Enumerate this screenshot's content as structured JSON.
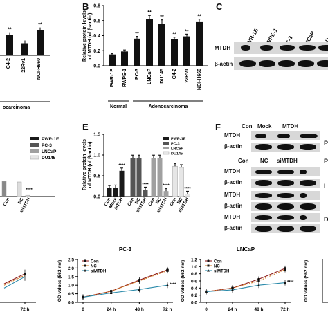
{
  "panels": {
    "b_label": "B",
    "c_label": "C",
    "e_label": "E",
    "f_label": "F"
  },
  "chart_b": {
    "ylabel": "Relative protein levels\nof MTDH (of β-actin)",
    "group_normal": "Normal",
    "group_adeno": "Adenocarcinoma"
  },
  "chart_a_partial": {
    "group_label": "ocarcinoma"
  },
  "chart_e": {
    "ylabel": "Relative protein levels\nof MTDH (of β-actin)"
  },
  "legend_d": [
    "PWR-1E",
    "PC-3",
    "LNCaP",
    "DU145"
  ],
  "legend_e": [
    "PWR-1E",
    "PC-3",
    "LNCaP",
    "DU145"
  ],
  "blot_c": {
    "lanes": [
      "PWR-1E",
      "RWPE-1",
      "PC-3",
      "LNCaP",
      "DU14"
    ],
    "rows": [
      "MTDH",
      "β-actin"
    ]
  },
  "blot_f": {
    "set1_lanes": [
      "Con",
      "Mock",
      "MTDH"
    ],
    "set2_lanes": [
      "Con",
      "NC",
      "siMTDH"
    ],
    "rows": [
      "MTDH",
      "β-actin",
      "MTDH",
      "β-actin",
      "MTDH",
      "β-actin",
      "MTDH",
      "β-actin"
    ],
    "side_letters": [
      "P",
      "P",
      "L",
      "D"
    ]
  },
  "line_pc3": {
    "title": "PC-3",
    "ylabel": "OD values (562 nm)",
    "xticks": [
      "0",
      "24 h",
      "48 h",
      "72 h"
    ],
    "legend": [
      "Con",
      "NC",
      "siMTDH"
    ]
  },
  "line_lncap": {
    "title": "LNCaP",
    "ylabel": "OD values (562 nm)",
    "xticks": [
      "0",
      "24 h",
      "48 h",
      "72 h"
    ],
    "legend": [
      "Con",
      "NC",
      "siMTDH"
    ]
  },
  "line_left_partial": {
    "xticks": [
      "72 h"
    ]
  },
  "line_right_partial": {
    "ylabel": "OD values (562 nm)"
  },
  "chart_data": [
    {
      "type": "bar",
      "title": "",
      "categories": [
        "C4-2",
        "22Rv1",
        "NCI-H660"
      ],
      "values": [
        0.42,
        0.25,
        0.52
      ],
      "significance": [
        "**",
        "",
        "**"
      ],
      "xlabel": "",
      "ylabel": ""
    },
    {
      "type": "bar",
      "title": "",
      "categories": [
        "PWR-1E",
        "RWPE-1",
        "PC-3",
        "LNCaP",
        "DU145",
        "C4-2",
        "22Rv1",
        "NCI-H660"
      ],
      "values": [
        0.15,
        0.19,
        0.36,
        0.62,
        0.56,
        0.35,
        0.39,
        0.58
      ],
      "errors": [
        0.01,
        0.02,
        0.03,
        0.05,
        0.05,
        0.03,
        0.03,
        0.04
      ],
      "significance": [
        "",
        "",
        "**",
        "**",
        "**",
        "**",
        "**",
        "**"
      ],
      "ylim": [
        0,
        0.8
      ],
      "yticks": [
        "0.0",
        "0.2",
        "0.4",
        "0.6",
        "0.8"
      ],
      "ylabel": "Relative protein levels\nof MTDH (of β-actin)",
      "xlabel": ""
    },
    {
      "type": "bar",
      "title": "",
      "categories": [
        "Con",
        "Mock",
        "MTDH",
        "Con",
        "NC",
        "siMTDH",
        "Con",
        "NC",
        "siMTDH",
        "Con",
        "NC",
        "siMTDH"
      ],
      "values": [
        0.2,
        0.21,
        0.62,
        0.93,
        0.93,
        0.16,
        0.93,
        0.93,
        0.13,
        0.73,
        0.7,
        0.06
      ],
      "colors": [
        "#1a1a1a",
        "#1a1a1a",
        "#1a1a1a",
        "#555555",
        "#555555",
        "#555555",
        "#a0a0a0",
        "#a0a0a0",
        "#a0a0a0",
        "#e6e6e6",
        "#e6e6e6",
        "#e6e6e6"
      ],
      "significance": [
        "",
        "",
        "****",
        "",
        "",
        "****",
        "",
        "",
        "****",
        "",
        "",
        "****"
      ],
      "ylim": [
        0,
        1.5
      ],
      "yticks": [
        "0.0",
        "0.5",
        "1.0",
        "1.5"
      ],
      "ylabel": "Relative protein levels\nof MTDH (of β-actin)",
      "xlabel": ""
    },
    {
      "type": "line",
      "title": "PC-3",
      "x": [
        "0",
        "24 h",
        "48 h",
        "72 h"
      ],
      "series": [
        {
          "name": "Con",
          "values": [
            0.3,
            0.65,
            1.3,
            1.9
          ],
          "color": "#8b1a1a"
        },
        {
          "name": "NC",
          "values": [
            0.3,
            0.65,
            1.25,
            1.85
          ],
          "color": "#d07a2a"
        },
        {
          "name": "siMTDH",
          "values": [
            0.3,
            0.55,
            0.75,
            1.0
          ],
          "color": "#2a8aaa"
        }
      ],
      "ylim": [
        0,
        2.5
      ],
      "yticks": [
        "0.0",
        "0.5",
        "1.0",
        "1.5",
        "2.0",
        "2.5"
      ],
      "ylabel": "OD values (562 nm)",
      "annotation": "****"
    },
    {
      "type": "line",
      "title": "LNCaP",
      "x": [
        "0",
        "24 h",
        "48 h",
        "72 h"
      ],
      "series": [
        {
          "name": "Con",
          "values": [
            0.3,
            0.4,
            0.65,
            0.95
          ],
          "color": "#8b1a1a"
        },
        {
          "name": "NC",
          "values": [
            0.3,
            0.4,
            0.6,
            0.92
          ],
          "color": "#d07a2a"
        },
        {
          "name": "siMTDH",
          "values": [
            0.3,
            0.35,
            0.48,
            0.55
          ],
          "color": "#2a8aaa"
        }
      ],
      "ylim": [
        0,
        1.2
      ],
      "yticks": [
        "0.0",
        "0.2",
        "0.4",
        "0.6",
        "0.8",
        "1.0",
        "1.2"
      ],
      "ylabel": "OD values (562 nm)",
      "annotation": "****"
    },
    {
      "type": "line",
      "title": "",
      "x": [
        "48 h",
        "72 h"
      ],
      "series": [
        {
          "name": "",
          "values": [
            0.65,
            1.0
          ],
          "color": "#8b1a1a"
        },
        {
          "name": "",
          "values": [
            0.6,
            0.95
          ],
          "color": "#d07a2a"
        },
        {
          "name": "",
          "values": [
            0.5,
            0.9
          ],
          "color": "#2a8aaa"
        }
      ],
      "ylim": [
        0,
        1.5
      ],
      "xlabel": "",
      "ylabel": ""
    }
  ]
}
